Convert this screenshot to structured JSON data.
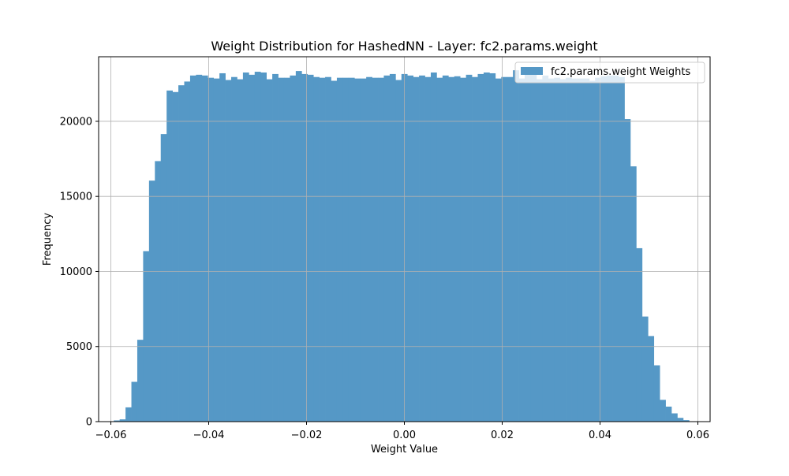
{
  "chart_data": {
    "type": "bar",
    "title": "Weight Distribution for HashedNN - Layer: fc2.params.weight",
    "xlabel": "Weight Value",
    "ylabel": "Frequency",
    "xlim": [
      -0.0625,
      0.0625
    ],
    "ylim": [
      0,
      24300
    ],
    "xticks": [
      -0.06,
      -0.04,
      -0.02,
      0.0,
      0.02,
      0.04,
      0.06
    ],
    "xtick_labels": [
      "−0.06",
      "−0.04",
      "−0.02",
      "0.00",
      "0.02",
      "0.04",
      "0.06"
    ],
    "yticks": [
      0,
      5000,
      10000,
      15000,
      20000
    ],
    "ytick_labels": [
      "0",
      "5000",
      "10000",
      "15000",
      "20000"
    ],
    "grid": true,
    "legend_position": "top-right",
    "series": [
      {
        "name": "fc2.params.weight Weights",
        "color": "#5598c6",
        "bin_start": -0.0594,
        "bin_width": 0.0012,
        "values": [
          80,
          150,
          950,
          2650,
          5450,
          11350,
          16050,
          17350,
          19150,
          22050,
          21950,
          22400,
          22650,
          23050,
          23100,
          23050,
          22900,
          22850,
          23200,
          22750,
          22950,
          22800,
          23250,
          23100,
          23300,
          23250,
          22800,
          23150,
          22900,
          22900,
          23050,
          23350,
          23150,
          23100,
          22950,
          22900,
          22950,
          22700,
          22900,
          22900,
          22900,
          22850,
          22850,
          22950,
          22900,
          22900,
          23050,
          23150,
          22750,
          23150,
          23050,
          22950,
          23050,
          22950,
          23250,
          22900,
          23050,
          22950,
          23000,
          22900,
          23100,
          22950,
          23150,
          23250,
          23200,
          22850,
          22950,
          22950,
          23400,
          22850,
          23450,
          23300,
          22800,
          23050,
          22850,
          22900,
          22800,
          22900,
          22850,
          22850,
          22850,
          22700,
          22900,
          23000,
          23050,
          23050,
          22950,
          20150,
          17000,
          11550,
          7000,
          5700,
          3750,
          1450,
          1000,
          550,
          250,
          100
        ]
      }
    ]
  }
}
